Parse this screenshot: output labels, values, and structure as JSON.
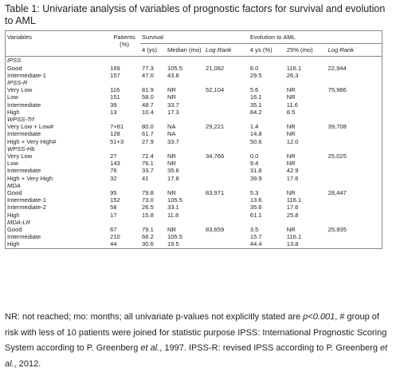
{
  "title": "Table 1: Univariate analysis of variables of prognostic factors for survival and evolution to AML",
  "table": {
    "headers": {
      "variables": "Variables",
      "patients": "Patients (%)",
      "survival": "Survival",
      "evolution": "Evolution to AML",
      "sub": [
        "4 (ys)",
        "Median (mo)",
        "Log Rank",
        "4 ys (%)",
        "25% (mo)",
        "Log Rank"
      ]
    },
    "groups": [
      {
        "name": "IPSS",
        "rows": [
          {
            "label": "Good",
            "values": [
              "169",
              "77.3",
              "105.5",
              "21,082",
              "6.0",
              "116.1",
              "22,944"
            ]
          },
          {
            "label": "Intermediate-1",
            "values": [
              "157",
              "47.0",
              "43.8",
              null,
              "29.5",
              "26.3",
              null
            ]
          }
        ]
      },
      {
        "name": "IPSS-R",
        "rows": [
          {
            "label": "Very Low",
            "values": [
              "116",
              "81.9",
              "NR",
              "52,104",
              "5.6",
              "NR",
              "75,986"
            ]
          },
          {
            "label": "Low",
            "values": [
              "151",
              "58.0",
              "NR",
              null,
              "16.1",
              "NR",
              null
            ]
          },
          {
            "label": "Intermediate",
            "values": [
              "39",
              "48.7",
              "33.7",
              null,
              "35.1",
              "11.6",
              null
            ]
          },
          {
            "label": "High",
            "values": [
              "13",
              "10.4",
              "17.3",
              null,
              "84.2",
              "8.5",
              null
            ]
          }
        ]
      },
      {
        "name": "WPSS-Trf",
        "rows": [
          {
            "label": "Very Low + Low#",
            "values": [
              "7+81",
              "80.0",
              "NA",
              "29,221",
              "1.4",
              "NR",
              "39,708"
            ]
          },
          {
            "label": "Intermediate",
            "values": [
              "128",
              "61.7",
              "NA",
              null,
              "14.8",
              "NR",
              null
            ]
          },
          {
            "label": "High + Very High#",
            "values": [
              "51+3",
              "27.9",
              "33.7",
              null,
              "50.6",
              "12.0",
              null
            ]
          }
        ]
      },
      {
        "name": "WPSS-Hb",
        "rows": [
          {
            "label": "Very Low",
            "values": [
              "27",
              "72.4",
              "NR",
              "34,766",
              "0.0",
              "NR",
              "25,025"
            ]
          },
          {
            "label": "Low",
            "values": [
              "143",
              "76.1",
              "NR",
              null,
              "9.4",
              "NR",
              null
            ]
          },
          {
            "label": "Intermediate",
            "values": [
              "76",
              "33.7",
              "35.6",
              null,
              "31.8",
              "42.9",
              null
            ]
          },
          {
            "label": "High + Very High",
            "values": [
              "32",
              "41",
              "17.8",
              null,
              "39.9",
              "17.6",
              null
            ]
          }
        ]
      },
      {
        "name": "MDA",
        "rows": [
          {
            "label": "Good",
            "values": [
              "95",
              "79.8",
              "NR",
              "83,971",
              "5.3",
              "NR",
              "28,447"
            ]
          },
          {
            "label": "Intermediate-1",
            "values": [
              "152",
              "73.0",
              "105.5",
              null,
              "13.6",
              "116.1",
              null
            ]
          },
          {
            "label": "Intermediate-2",
            "values": [
              "58",
              "26.5",
              "33.1",
              null,
              "35.6",
              "17.6",
              null
            ]
          },
          {
            "label": "High",
            "values": [
              "17",
              "15.8",
              "11.8",
              null,
              "61.1",
              "25.8",
              null
            ]
          }
        ]
      },
      {
        "name": "MDA-LR",
        "rows": [
          {
            "label": "Good",
            "values": [
              "67",
              "79.1",
              "NR",
              "83,659",
              "3.5",
              "NR",
              "25,935"
            ]
          },
          {
            "label": "Intermediate",
            "values": [
              "210",
              "66.2",
              "105.5",
              null,
              "15.7",
              "116.1",
              null
            ]
          },
          {
            "label": "High",
            "values": [
              "44",
              "30.6",
              "19.5",
              null,
              "44.4",
              "13.8",
              null
            ]
          }
        ]
      }
    ]
  },
  "footnote": [
    "NR: not reached; mo: months; all univariate p-values not explicitly stated are ",
    "p<0.001",
    ", # group of risk with less of 10 patients were joined for statistic purpose IPSS: International Prognostic Scoring System according to P. Greenberg ",
    "et al.",
    ", 1997. IPSS-R: revised IPSS according to P. Greenberg ",
    "et al.",
    ", 2012."
  ]
}
